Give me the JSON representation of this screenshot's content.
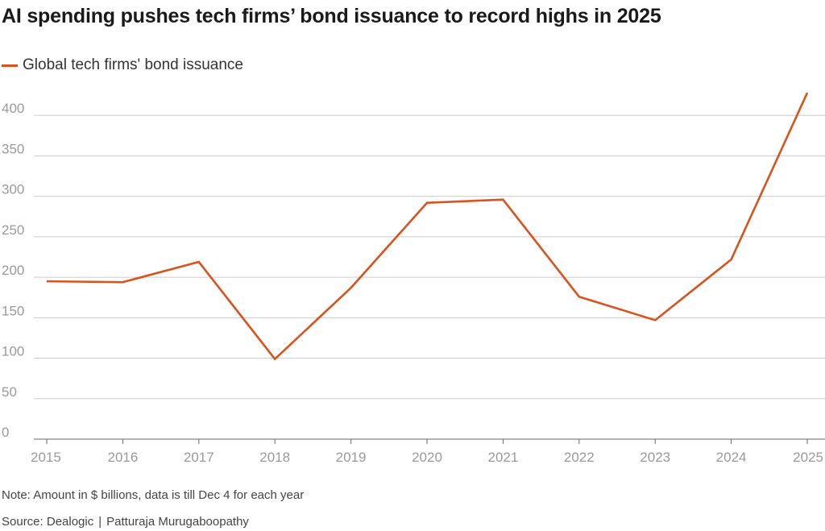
{
  "chart_data": {
    "type": "line",
    "title": "AI spending pushes tech firms’ bond issuance to record highs in 2025",
    "legend": "top-left",
    "series": [
      {
        "name": "Global tech firms' bond issuance",
        "color": "#d9531e",
        "values": [
          195,
          194,
          219,
          99,
          187,
          292,
          296,
          176,
          147,
          222,
          428
        ]
      }
    ],
    "categories": [
      "2015",
      "2016",
      "2017",
      "2018",
      "2019",
      "2020",
      "2021",
      "2022",
      "2023",
      "2024",
      "2025"
    ],
    "yticks": [
      "0",
      "50",
      "100",
      "150",
      "200",
      "250",
      "300",
      "350",
      "400"
    ],
    "ylim": [
      0,
      450
    ],
    "xlabel": "",
    "ylabel": "",
    "grid": true
  },
  "footer": {
    "note": "Note: Amount in $ billions, data is till Dec 4 for each year",
    "source": "Source: Dealogic",
    "author": "Patturaja Murugaboopathy"
  }
}
